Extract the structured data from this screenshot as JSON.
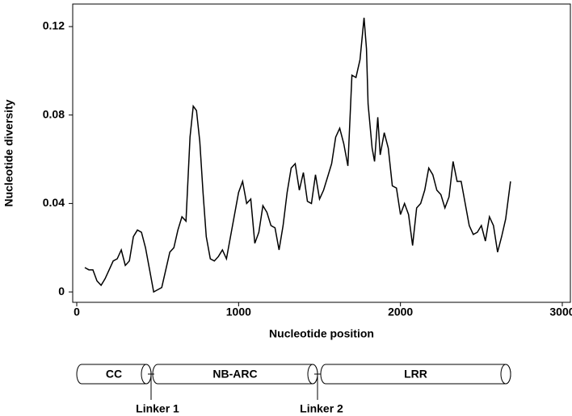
{
  "chart_data": {
    "type": "line",
    "xlabel": "Nucleotide position",
    "ylabel": "Nucleotide diversity",
    "x": [
      50,
      75,
      100,
      125,
      150,
      175,
      200,
      225,
      250,
      275,
      300,
      325,
      350,
      375,
      400,
      425,
      450,
      475,
      500,
      525,
      550,
      575,
      600,
      625,
      650,
      675,
      700,
      720,
      740,
      760,
      780,
      800,
      825,
      850,
      875,
      900,
      925,
      950,
      975,
      1000,
      1025,
      1050,
      1075,
      1100,
      1125,
      1150,
      1175,
      1200,
      1225,
      1250,
      1275,
      1300,
      1325,
      1350,
      1375,
      1400,
      1425,
      1450,
      1475,
      1500,
      1525,
      1550,
      1575,
      1600,
      1625,
      1650,
      1675,
      1700,
      1725,
      1750,
      1775,
      1790,
      1800,
      1825,
      1840,
      1860,
      1875,
      1900,
      1925,
      1950,
      1975,
      2000,
      2025,
      2050,
      2075,
      2100,
      2125,
      2150,
      2175,
      2200,
      2225,
      2250,
      2275,
      2300,
      2325,
      2350,
      2375,
      2400,
      2425,
      2450,
      2475,
      2500,
      2525,
      2550,
      2575,
      2600,
      2625,
      2650,
      2680
    ],
    "series": [
      {
        "color": "#000000",
        "values": [
          0.011,
          0.01,
          0.01,
          0.005,
          0.003,
          0.006,
          0.01,
          0.014,
          0.015,
          0.019,
          0.012,
          0.014,
          0.025,
          0.028,
          0.027,
          0.02,
          0.01,
          0.0,
          0.001,
          0.002,
          0.01,
          0.018,
          0.02,
          0.028,
          0.034,
          0.032,
          0.07,
          0.084,
          0.082,
          0.068,
          0.045,
          0.025,
          0.015,
          0.014,
          0.016,
          0.019,
          0.015,
          0.025,
          0.035,
          0.045,
          0.05,
          0.04,
          0.042,
          0.022,
          0.027,
          0.039,
          0.036,
          0.03,
          0.029,
          0.019,
          0.03,
          0.045,
          0.056,
          0.058,
          0.046,
          0.054,
          0.041,
          0.04,
          0.053,
          0.042,
          0.046,
          0.052,
          0.058,
          0.07,
          0.074,
          0.067,
          0.057,
          0.098,
          0.097,
          0.105,
          0.124,
          0.11,
          0.085,
          0.065,
          0.059,
          0.079,
          0.062,
          0.072,
          0.065,
          0.048,
          0.047,
          0.035,
          0.04,
          0.035,
          0.021,
          0.038,
          0.04,
          0.046,
          0.056,
          0.053,
          0.046,
          0.044,
          0.038,
          0.043,
          0.059,
          0.05,
          0.05,
          0.04,
          0.03,
          0.026,
          0.027,
          0.03,
          0.023,
          0.034,
          0.03,
          0.018,
          0.025,
          0.033,
          0.05
        ]
      }
    ],
    "xlim": [
      -25,
      3050
    ],
    "xticks": [
      0,
      1000,
      2000,
      3000
    ],
    "ylim": [
      -0.0047,
      0.1302
    ],
    "yticks": [
      0,
      0.04,
      0.08,
      0.12
    ]
  },
  "diagram": {
    "domains": [
      "CC",
      "NB-ARC",
      "LRR"
    ],
    "linkers": [
      "Linker 1",
      "Linker 2"
    ]
  }
}
